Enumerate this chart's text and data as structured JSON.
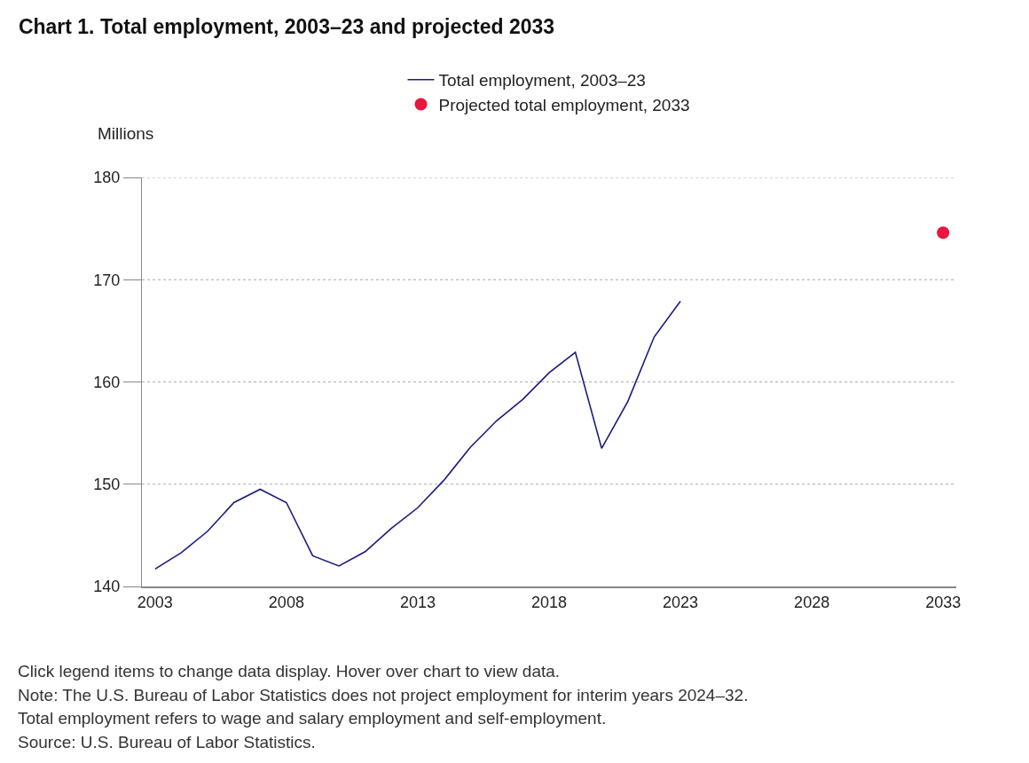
{
  "chart_data": {
    "type": "line",
    "title": "Chart 1. Total employment, 2003–23 and projected 2033",
    "ylabel": "Millions",
    "series": [
      {
        "name": "Total employment, 2003–23",
        "color": "#1a1a80",
        "marker": "none",
        "x": [
          2003,
          2004,
          2005,
          2006,
          2007,
          2008,
          2009,
          2010,
          2011,
          2012,
          2013,
          2014,
          2015,
          2016,
          2017,
          2018,
          2019,
          2020,
          2021,
          2022,
          2023
        ],
        "values": [
          141.7,
          143.3,
          145.4,
          148.2,
          149.5,
          148.2,
          143.0,
          142.0,
          143.4,
          145.7,
          147.7,
          150.4,
          153.6,
          156.2,
          158.3,
          160.9,
          162.9,
          153.5,
          158.1,
          164.4,
          167.9
        ]
      },
      {
        "name": "Projected total employment, 2033",
        "type": "scatter",
        "color": "#e8173d",
        "marker": "circle",
        "x": [
          2033
        ],
        "values": [
          174.6
        ]
      }
    ],
    "xlim": [
      2002.5,
      2033.5
    ],
    "xticks": [
      2003,
      2008,
      2013,
      2018,
      2023,
      2028,
      2033
    ],
    "ylim": [
      140,
      180
    ],
    "yticks": [
      140,
      150,
      160,
      170,
      180
    ],
    "grid": "y",
    "legend": "top",
    "annotations": [
      "Click legend items to change data display. Hover over chart to view data.",
      "Note: The U.S. Bureau of Labor Statistics does not project employment for interim years 2024–32.",
      "Total employment refers to wage and salary employment and self-employment.",
      "Source: U.S. Bureau of Labor Statistics."
    ]
  }
}
